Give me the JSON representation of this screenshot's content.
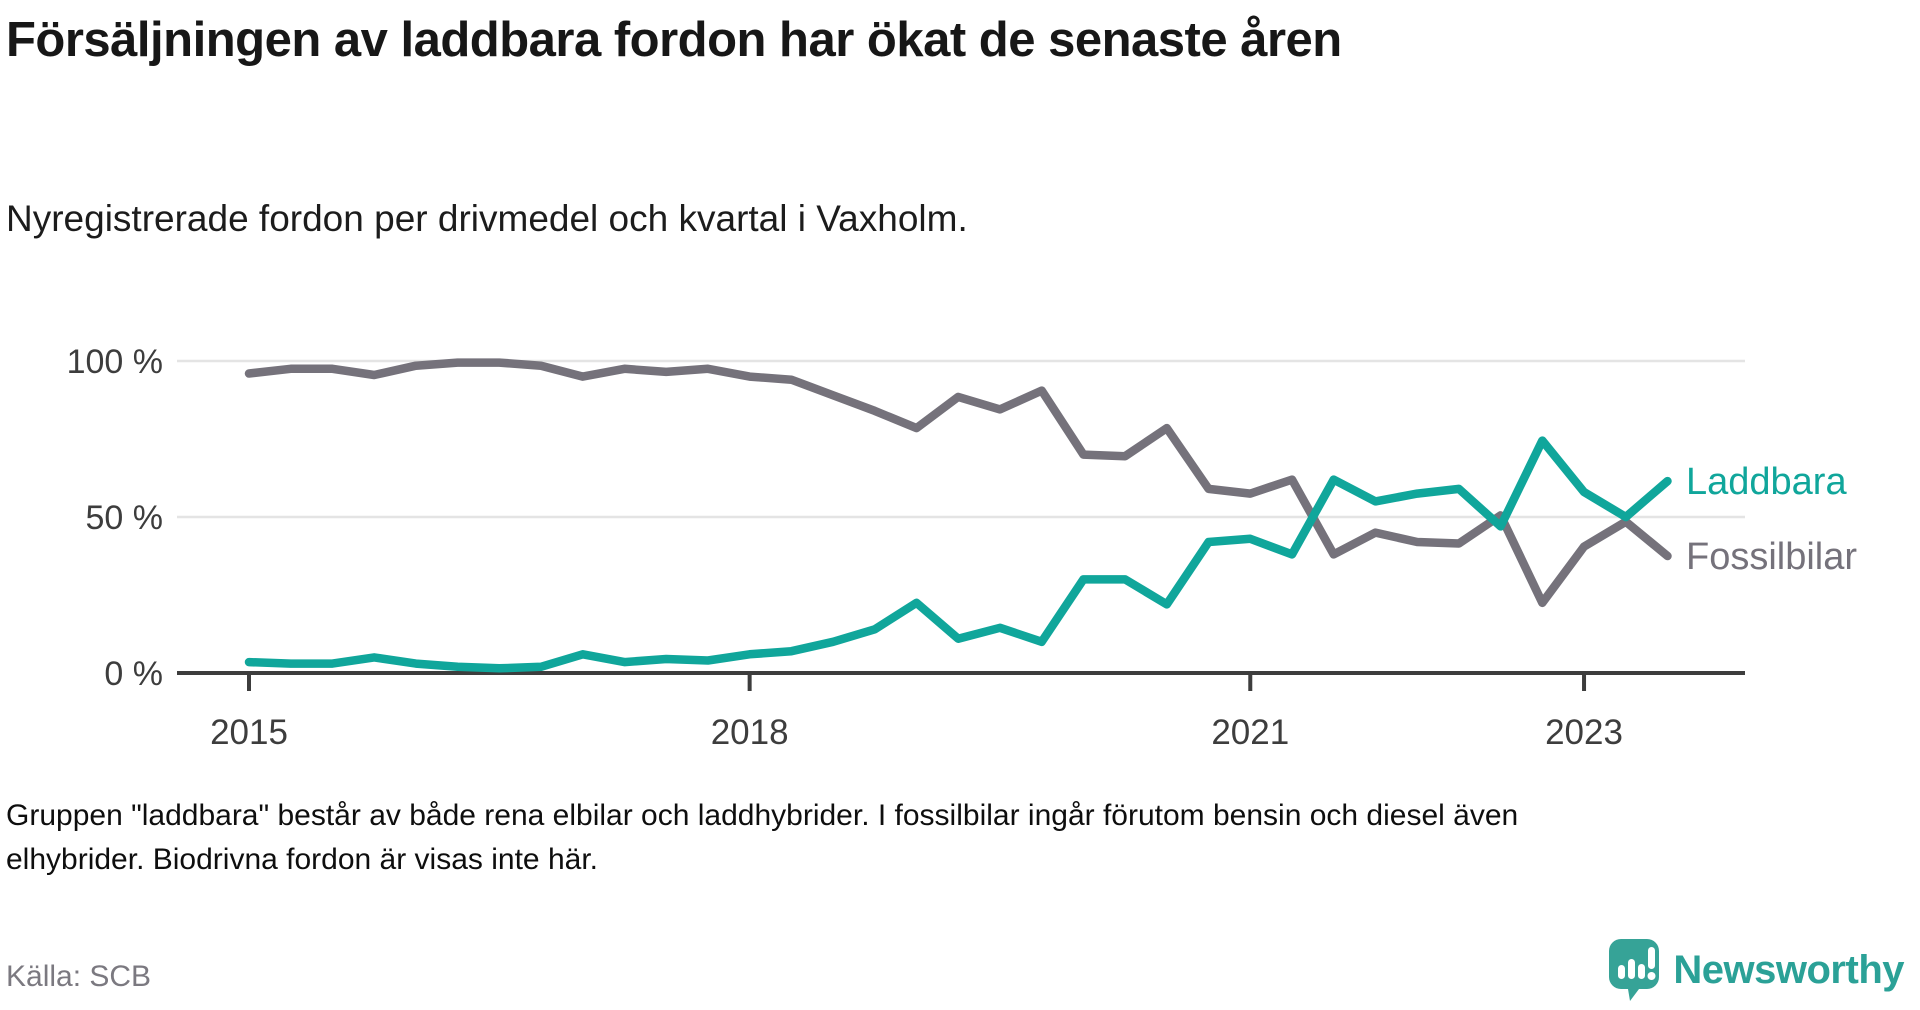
{
  "header": {
    "title": "Försäljningen av laddbara fordon har ökat de senaste åren",
    "subtitle": "Nyregistrerade fordon per drivmedel och kvartal i Vaxholm."
  },
  "chart_data": {
    "type": "line",
    "title": "Försäljningen av laddbara fordon har ökat de senaste åren",
    "subtitle": "Nyregistrerade fordon per drivmedel och kvartal i Vaxholm.",
    "unit": "%",
    "ylim": [
      0,
      100
    ],
    "yticks": [
      0,
      50,
      100
    ],
    "ytick_labels": [
      "0 %",
      "50 %",
      "100 %"
    ],
    "grid": "horizontal",
    "legend_position": "right-end-of-line",
    "axis_color": "#3d3d3d",
    "grid_color": "#e4e4e4",
    "categories": [
      "2015Q1",
      "2015Q2",
      "2015Q3",
      "2015Q4",
      "2016Q1",
      "2016Q2",
      "2016Q3",
      "2016Q4",
      "2017Q1",
      "2017Q2",
      "2017Q3",
      "2017Q4",
      "2018Q1",
      "2018Q2",
      "2018Q3",
      "2018Q4",
      "2019Q1",
      "2019Q2",
      "2019Q3",
      "2019Q4",
      "2020Q1",
      "2020Q2",
      "2020Q3",
      "2020Q4",
      "2021Q1",
      "2021Q2",
      "2021Q3",
      "2021Q4",
      "2022Q1",
      "2022Q2",
      "2022Q3",
      "2022Q4",
      "2023Q1",
      "2023Q2",
      "2023Q3"
    ],
    "year_ticks": [
      {
        "label": "2015",
        "index": 0
      },
      {
        "label": "2018",
        "index": 12
      },
      {
        "label": "2021",
        "index": 24
      },
      {
        "label": "2023",
        "index": 32
      }
    ],
    "series": [
      {
        "name": "Laddbara",
        "color": "#10a69b",
        "values": [
          3.5,
          3,
          3,
          5,
          3,
          2,
          1.5,
          2,
          6,
          3.5,
          4.5,
          4,
          6,
          7,
          10,
          14,
          22.5,
          11,
          14.5,
          10,
          30,
          30,
          22,
          42,
          43,
          38,
          62,
          55,
          57.5,
          59,
          47,
          74.5,
          58,
          50,
          61.5
        ]
      },
      {
        "name": "Fossilbilar",
        "color": "#75727b",
        "values": [
          96,
          97.5,
          97.5,
          95.5,
          98.5,
          99.5,
          99.5,
          98.5,
          95,
          97.5,
          96.5,
          97.5,
          95,
          94,
          89,
          84,
          78.5,
          88.5,
          84.5,
          90.5,
          70,
          69.5,
          78.5,
          59,
          57.5,
          62,
          38,
          45,
          42,
          41.5,
          50.5,
          22.5,
          40.5,
          48.5,
          37.5
        ]
      }
    ]
  },
  "footer": {
    "note": "Gruppen \"laddbara\" består av både rena elbilar och laddhybrider. I fossilbilar ingår förutom bensin och diesel även elhybrider. Biodrivna fordon är visas inte här.",
    "source": "Källa: SCB"
  },
  "branding": {
    "logo_text": "Newsworthy",
    "logo_icon": "newsworthy-speech-bubble-bar-chart-icon",
    "logo_color": "#2ba197"
  }
}
